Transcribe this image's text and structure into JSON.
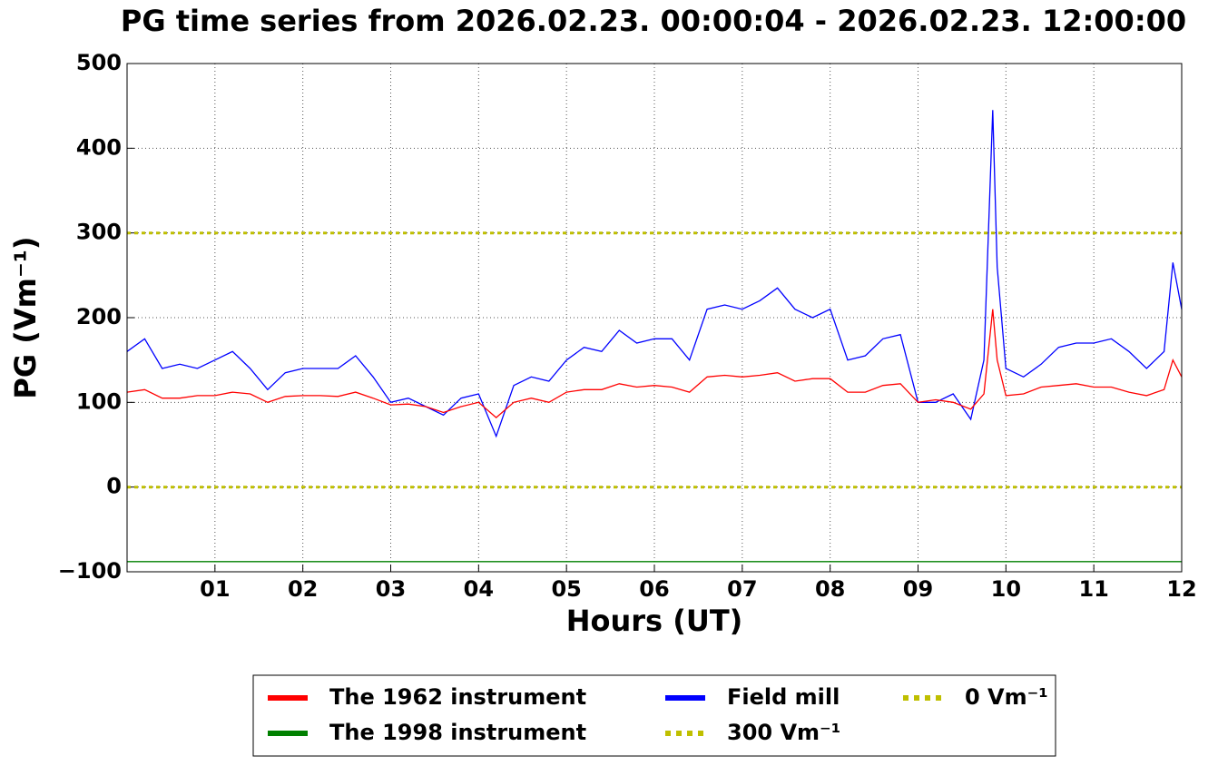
{
  "chart_data": {
    "type": "line",
    "title": "PG time series from 2026.02.23. 00:00:04 - 2026.02.23. 12:00:00",
    "x_label": "Hours (UT)",
    "y_label": "PG (Vm⁻¹)",
    "x": [
      0,
      0.2,
      0.4,
      0.6,
      0.8,
      1,
      1.2,
      1.4,
      1.6,
      1.8,
      2,
      2.2,
      2.4,
      2.6,
      2.8,
      3,
      3.2,
      3.4,
      3.6,
      3.8,
      4,
      4.2,
      4.4,
      4.6,
      4.8,
      5,
      5.2,
      5.4,
      5.6,
      5.8,
      6,
      6.2,
      6.4,
      6.6,
      6.8,
      7,
      7.2,
      7.4,
      7.6,
      7.8,
      8,
      8.2,
      8.4,
      8.6,
      8.8,
      9,
      9.2,
      9.4,
      9.6,
      9.75,
      9.85,
      9.9,
      10,
      10.2,
      10.4,
      10.6,
      10.8,
      11,
      11.2,
      11.4,
      11.6,
      11.8,
      11.9,
      12
    ],
    "series": [
      {
        "name": "The 1962 instrument",
        "color": "#ff0000",
        "values": [
          112,
          115,
          105,
          105,
          108,
          108,
          112,
          110,
          100,
          107,
          108,
          108,
          107,
          112,
          105,
          97,
          98,
          95,
          88,
          95,
          100,
          82,
          100,
          105,
          100,
          112,
          115,
          115,
          122,
          118,
          120,
          118,
          112,
          130,
          132,
          130,
          132,
          135,
          125,
          128,
          128,
          112,
          112,
          120,
          122,
          100,
          103,
          100,
          92,
          110,
          210,
          150,
          108,
          110,
          118,
          120,
          122,
          118,
          118,
          112,
          108,
          115,
          150,
          130
        ]
      },
      {
        "name": "The 1998 instrument",
        "color": "#008000",
        "values": [
          -88,
          -88,
          -88,
          -88,
          -88,
          -88,
          -88,
          -88,
          -88,
          -88,
          -88,
          -88,
          -88,
          -88,
          -88,
          -88,
          -88,
          -88,
          -88,
          -88,
          -88,
          -88,
          -88,
          -88,
          -88,
          -88,
          -88,
          -88,
          -88,
          -88,
          -88,
          -88,
          -88,
          -88,
          -88,
          -88,
          -88,
          -88,
          -88,
          -88,
          -88,
          -88,
          -88,
          -88,
          -88,
          -88,
          -88,
          -88,
          -88,
          -88,
          -88,
          -88,
          -88,
          -88,
          -88,
          -88,
          -88,
          -88,
          -88,
          -88,
          -88,
          -88,
          -88,
          -88
        ]
      },
      {
        "name": "Field mill",
        "color": "#0000ff",
        "values": [
          160,
          175,
          140,
          145,
          140,
          150,
          160,
          140,
          115,
          135,
          140,
          140,
          140,
          155,
          130,
          100,
          105,
          95,
          85,
          105,
          110,
          60,
          120,
          130,
          125,
          150,
          165,
          160,
          185,
          170,
          175,
          175,
          150,
          210,
          215,
          210,
          220,
          235,
          210,
          200,
          210,
          150,
          155,
          175,
          180,
          100,
          100,
          110,
          80,
          150,
          445,
          260,
          140,
          130,
          145,
          165,
          170,
          170,
          175,
          160,
          140,
          160,
          265,
          210
        ]
      },
      {
        "name": "300 Vm⁻¹",
        "color": "#bfbf00",
        "dashed": true,
        "values": [
          300,
          300,
          300,
          300,
          300,
          300,
          300,
          300,
          300,
          300,
          300,
          300,
          300,
          300,
          300,
          300,
          300,
          300,
          300,
          300,
          300,
          300,
          300,
          300,
          300,
          300,
          300,
          300,
          300,
          300,
          300,
          300,
          300,
          300,
          300,
          300,
          300,
          300,
          300,
          300,
          300,
          300,
          300,
          300,
          300,
          300,
          300,
          300,
          300,
          300,
          300,
          300,
          300,
          300,
          300,
          300,
          300,
          300,
          300,
          300,
          300,
          300,
          300,
          300
        ]
      },
      {
        "name": "0 Vm⁻¹",
        "color": "#bfbf00",
        "dashed": true,
        "values": [
          0,
          0,
          0,
          0,
          0,
          0,
          0,
          0,
          0,
          0,
          0,
          0,
          0,
          0,
          0,
          0,
          0,
          0,
          0,
          0,
          0,
          0,
          0,
          0,
          0,
          0,
          0,
          0,
          0,
          0,
          0,
          0,
          0,
          0,
          0,
          0,
          0,
          0,
          0,
          0,
          0,
          0,
          0,
          0,
          0,
          0,
          0,
          0,
          0,
          0,
          0,
          0,
          0,
          0,
          0,
          0,
          0,
          0,
          0,
          0,
          0,
          0,
          0,
          0
        ]
      }
    ],
    "xlim": [
      0,
      12
    ],
    "xticks": [
      {
        "value": 1,
        "label": "01"
      },
      {
        "value": 2,
        "label": "02"
      },
      {
        "value": 3,
        "label": "03"
      },
      {
        "value": 4,
        "label": "04"
      },
      {
        "value": 5,
        "label": "05"
      },
      {
        "value": 6,
        "label": "06"
      },
      {
        "value": 7,
        "label": "07"
      },
      {
        "value": 8,
        "label": "08"
      },
      {
        "value": 9,
        "label": "09"
      },
      {
        "value": 10,
        "label": "10"
      },
      {
        "value": 11,
        "label": "11"
      },
      {
        "value": 12,
        "label": "12"
      }
    ],
    "ylim": [
      -100,
      500
    ],
    "yticks": [
      {
        "value": -100,
        "label": "−100"
      },
      0,
      100,
      200,
      300,
      400,
      500
    ],
    "grid": true,
    "legend": "bottom"
  }
}
